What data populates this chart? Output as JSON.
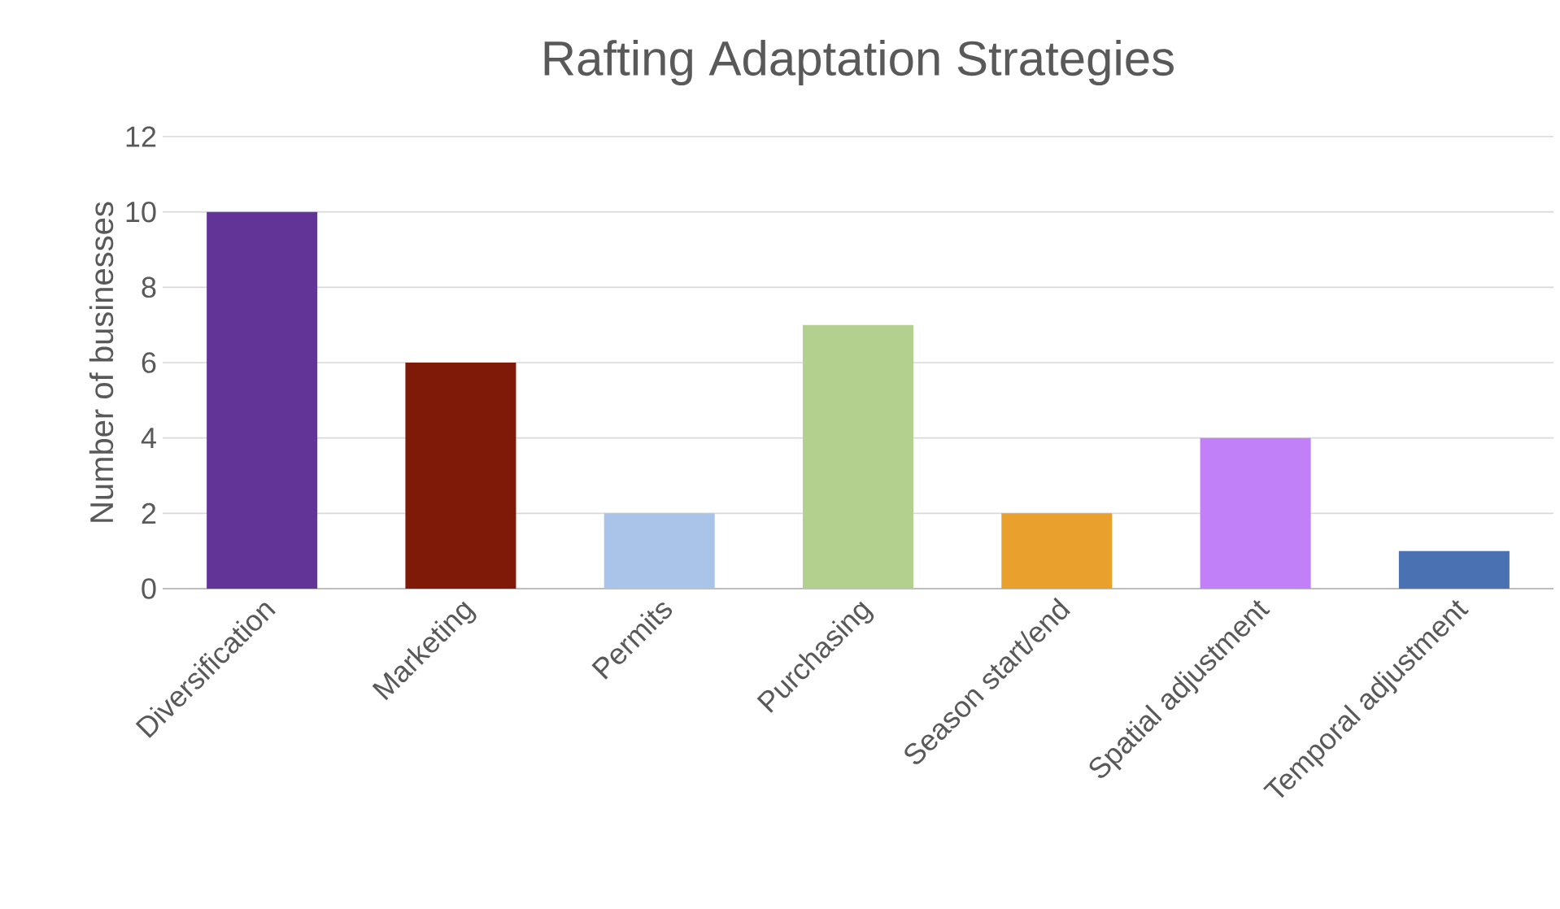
{
  "chart_data": {
    "type": "bar",
    "title": "Rafting Adaptation Strategies",
    "ylabel": "Number of businesses",
    "categories": [
      "Diversification",
      "Marketing",
      "Permits",
      "Purchasing",
      "Season start/end",
      "Spatial adjustment",
      "Temporal adjustment"
    ],
    "values": [
      10,
      6,
      2,
      7,
      2,
      4,
      1
    ],
    "colors": [
      "#623497",
      "#7f1a08",
      "#a9c4e8",
      "#b3d08f",
      "#e9a02d",
      "#c17ff8",
      "#4a72b3"
    ],
    "ylim": [
      0,
      12
    ],
    "yticks": [
      0,
      2,
      4,
      6,
      8,
      10,
      12
    ],
    "grid": "y"
  }
}
